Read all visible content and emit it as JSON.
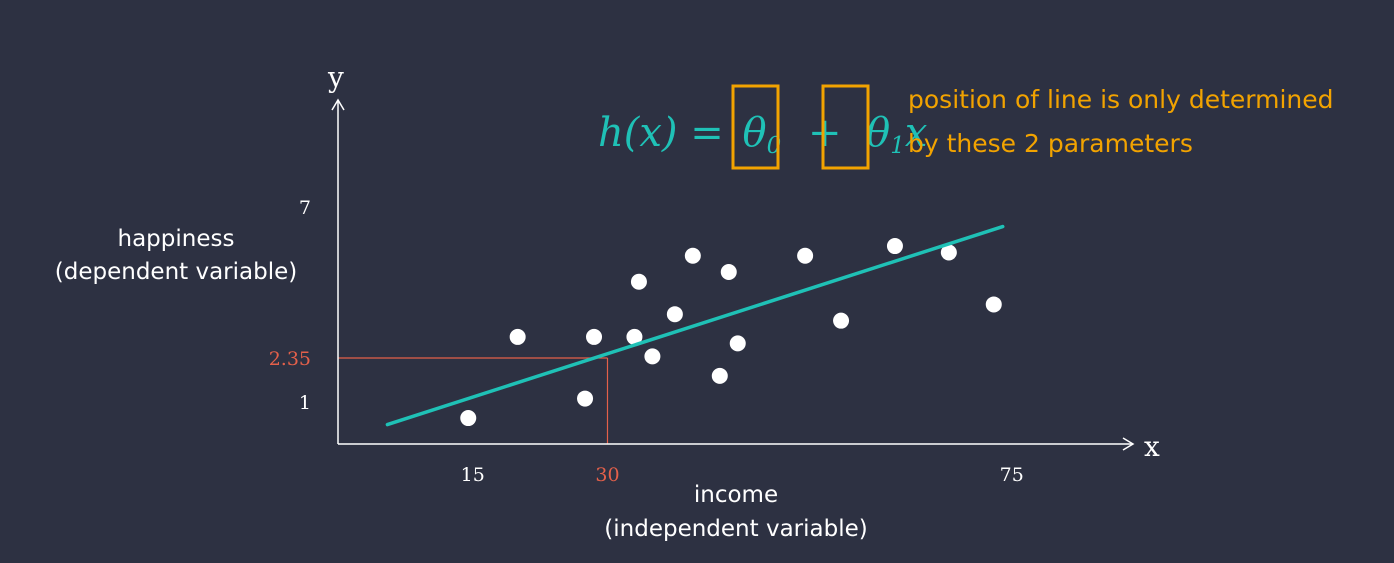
{
  "colors": {
    "background": "#2d3142",
    "axis": "#ffffff",
    "text": "#ffffff",
    "highlight": "#e4604a",
    "regression_line": "#1fc1b6",
    "annotation": "#f2a300",
    "points": "#ffffff"
  },
  "chart_data": {
    "type": "scatter",
    "xlabel": "income",
    "xlabel_sub": "(independent variable)",
    "ylabel": "happiness",
    "ylabel_sub": "(dependent variable)",
    "x_axis_letter": "x",
    "y_axis_letter": "y",
    "xlim": [
      0,
      88.5
    ],
    "ylim": [
      -0.3,
      10.3
    ],
    "x_ticks": [
      {
        "value": 15,
        "label": "15",
        "highlight": false
      },
      {
        "value": 30,
        "label": "30",
        "highlight": true
      },
      {
        "value": 75,
        "label": "75",
        "highlight": false
      }
    ],
    "y_ticks": [
      {
        "value": 7,
        "label": "7",
        "highlight": false
      },
      {
        "value": 2.35,
        "label": "2.35",
        "highlight": true
      },
      {
        "value": 1,
        "label": "1",
        "highlight": false
      }
    ],
    "points": [
      {
        "x": 14.5,
        "y": 0.5
      },
      {
        "x": 20.0,
        "y": 3.0
      },
      {
        "x": 27.5,
        "y": 1.1
      },
      {
        "x": 28.5,
        "y": 3.0
      },
      {
        "x": 33.0,
        "y": 3.0
      },
      {
        "x": 33.5,
        "y": 4.7
      },
      {
        "x": 35.0,
        "y": 2.4
      },
      {
        "x": 37.5,
        "y": 3.7
      },
      {
        "x": 39.5,
        "y": 5.5
      },
      {
        "x": 42.5,
        "y": 1.8
      },
      {
        "x": 43.5,
        "y": 5.0
      },
      {
        "x": 44.5,
        "y": 2.8
      },
      {
        "x": 52.0,
        "y": 5.5
      },
      {
        "x": 56.0,
        "y": 3.5
      },
      {
        "x": 62.0,
        "y": 5.8
      },
      {
        "x": 68.0,
        "y": 5.6
      },
      {
        "x": 73.0,
        "y": 4.0
      }
    ],
    "regression_line": {
      "x": [
        5.5,
        74.0
      ],
      "y": [
        0.3,
        6.4
      ]
    },
    "highlight_point": {
      "x": 30,
      "y": 2.35
    },
    "formula": {
      "lhs": "h(x) =",
      "theta0": "θ",
      "theta0_sub": "0",
      "plus": "+",
      "theta1": "θ",
      "theta1_sub": "1",
      "x": "x"
    },
    "annotation": [
      "position of line is only determined",
      "by these 2 parameters"
    ]
  }
}
